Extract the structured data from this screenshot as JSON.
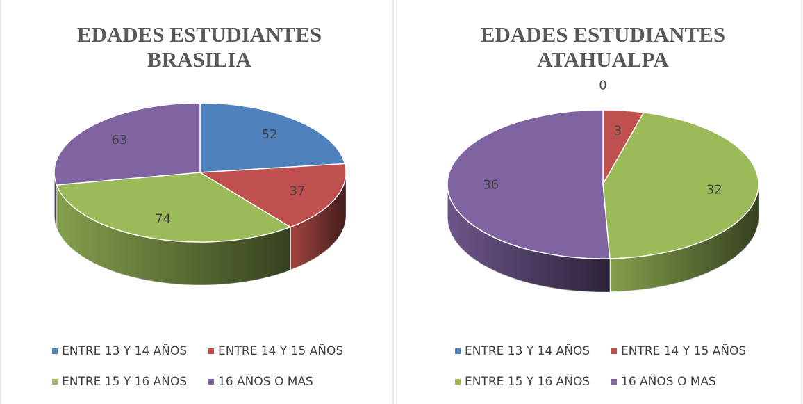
{
  "chart_data": [
    {
      "type": "pie",
      "title": "EDADES ESTUDIANTES BRASILIA",
      "categories": [
        "ENTRE 13 Y 14 AÑOS",
        "ENTRE 14 Y 15 AÑOS",
        "ENTRE 15 Y 16 AÑOS",
        "16 AÑOS O MAS"
      ],
      "values": [
        52,
        37,
        74,
        63
      ],
      "colors": [
        "#4f81bd",
        "#c0504d",
        "#9bbb59",
        "#8064a2"
      ],
      "legend": "bottom"
    },
    {
      "type": "pie",
      "title": "EDADES ESTUDIANTES ATAHUALPA",
      "categories": [
        "ENTRE 13 Y 14 AÑOS",
        "ENTRE 14 Y 15 AÑOS",
        "ENTRE 15 Y 16 AÑOS",
        "16 AÑOS O MAS"
      ],
      "values": [
        0,
        3,
        32,
        36
      ],
      "colors": [
        "#4f81bd",
        "#c0504d",
        "#9bbb59",
        "#8064a2"
      ],
      "legend": "bottom"
    }
  ]
}
